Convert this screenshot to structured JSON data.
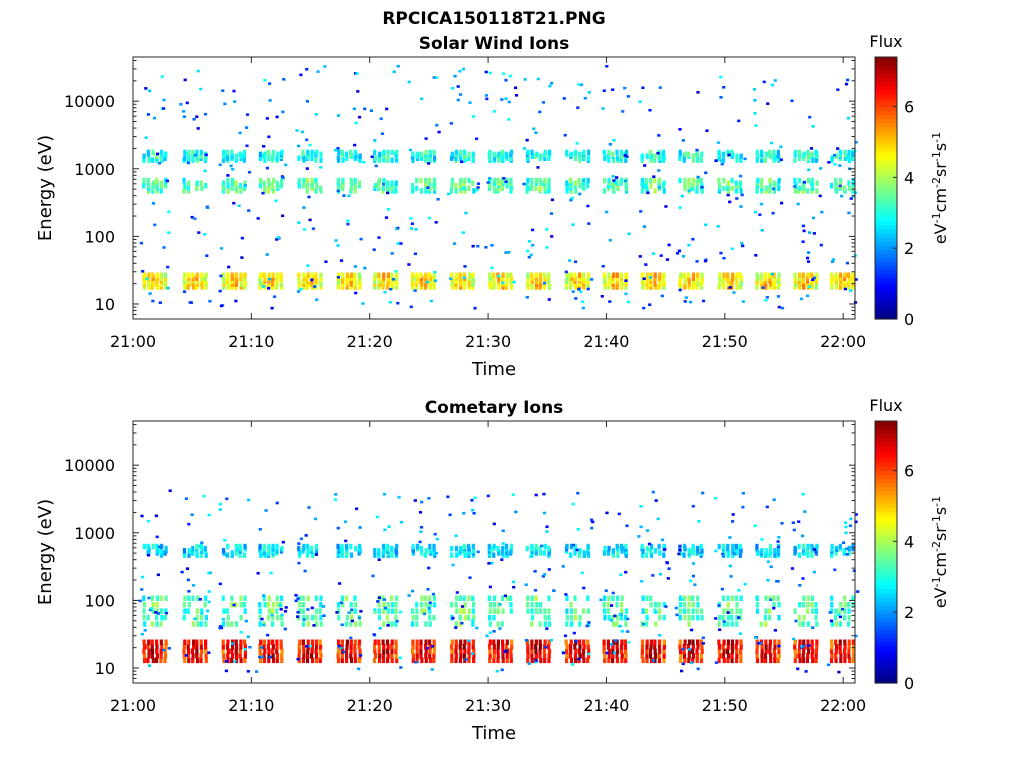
{
  "figure_title": "RPCICA150118T21.PNG",
  "chart_data": [
    {
      "type": "heatmap",
      "title": "Solar Wind Ions",
      "xlabel": "Time",
      "ylabel": "Energy (eV)",
      "x_ticks": [
        "21:00",
        "21:10",
        "21:20",
        "21:30",
        "21:40",
        "21:50",
        "22:00"
      ],
      "x_range_minutes": [
        0,
        61
      ],
      "y_scale": "log",
      "y_range": [
        6,
        45000
      ],
      "y_ticks": [
        10,
        100,
        1000,
        10000
      ],
      "y_tick_labels": [
        "10",
        "100",
        "1000",
        "10000"
      ],
      "sweep_starts_minutes": [
        1.8,
        5.2,
        8.5,
        11.6,
        14.9,
        18.2,
        21.3,
        24.5,
        27.8,
        31.0,
        34.2,
        37.5,
        40.7,
        43.9,
        47.1,
        50.4,
        53.6,
        56.8,
        59.9
      ],
      "dominant_bands": [
        {
          "energy_min": 17,
          "energy_max": 28,
          "flux_level": 4.5
        },
        {
          "energy_min": 450,
          "energy_max": 700,
          "flux_level": 3.2
        },
        {
          "energy_min": 1300,
          "energy_max": 1800,
          "flux_level": 2.8
        }
      ],
      "colorbar": {
        "title": "Flux",
        "label": "eV-1cm-2sr-1s-1",
        "ticks": [
          0,
          2,
          4,
          6
        ],
        "range": [
          0,
          7.4
        ],
        "colormap": "jet"
      }
    },
    {
      "type": "heatmap",
      "title": "Cometary Ions",
      "xlabel": "Time",
      "ylabel": "Energy (eV)",
      "x_ticks": [
        "21:00",
        "21:10",
        "21:20",
        "21:30",
        "21:40",
        "21:50",
        "22:00"
      ],
      "x_range_minutes": [
        0,
        61
      ],
      "y_scale": "log",
      "y_range": [
        6,
        45000
      ],
      "y_ticks": [
        10,
        100,
        1000,
        10000
      ],
      "y_tick_labels": [
        "10",
        "100",
        "1000",
        "10000"
      ],
      "sweep_starts_minutes": [
        1.8,
        5.2,
        8.5,
        11.6,
        14.9,
        18.2,
        21.3,
        24.5,
        27.8,
        31.0,
        34.2,
        37.5,
        40.7,
        43.9,
        47.1,
        50.4,
        53.6,
        56.8,
        59.9
      ],
      "dominant_bands": [
        {
          "energy_min": 12,
          "energy_max": 26,
          "flux_level": 6.2
        },
        {
          "energy_min": 40,
          "energy_max": 120,
          "flux_level": 3.2
        },
        {
          "energy_min": 450,
          "energy_max": 650,
          "flux_level": 2.5
        }
      ],
      "colorbar": {
        "title": "Flux",
        "label": "eV-1cm-2sr-1s-1",
        "ticks": [
          0,
          2,
          4,
          6
        ],
        "range": [
          0,
          7.4
        ],
        "colormap": "jet"
      }
    }
  ]
}
